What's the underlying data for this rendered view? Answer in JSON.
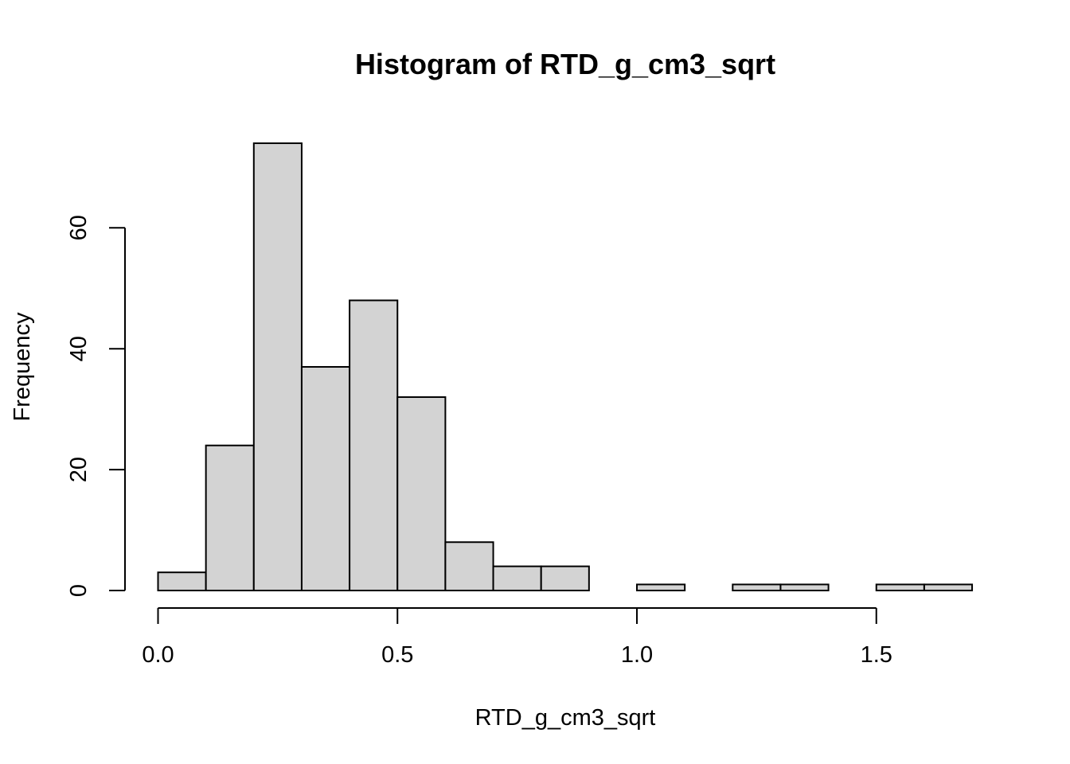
{
  "chart_data": {
    "type": "histogram",
    "title": "Histogram of RTD_g_cm3_sqrt",
    "xlabel": "RTD_g_cm3_sqrt",
    "ylabel": "Frequency",
    "bin_edges": [
      0.0,
      0.1,
      0.2,
      0.3,
      0.4,
      0.5,
      0.6,
      0.7,
      0.8,
      0.9,
      1.0,
      1.1,
      1.2,
      1.3,
      1.4,
      1.5,
      1.6,
      1.7
    ],
    "counts": [
      3,
      24,
      74,
      37,
      48,
      32,
      8,
      4,
      4,
      0,
      1,
      0,
      1,
      1,
      0,
      1,
      1
    ],
    "xlim": [
      0.0,
      1.7
    ],
    "ylim": [
      0,
      74
    ],
    "x_ticks": [
      0.0,
      0.5,
      1.0,
      1.5
    ],
    "x_tick_labels": [
      "0.0",
      "0.5",
      "1.0",
      "1.5"
    ],
    "y_ticks": [
      0,
      20,
      40,
      60
    ],
    "y_tick_labels": [
      "0",
      "20",
      "40",
      "60"
    ],
    "bar_fill": "#d3d3d3",
    "bar_stroke": "#000000",
    "grid": false,
    "legend": "none"
  }
}
